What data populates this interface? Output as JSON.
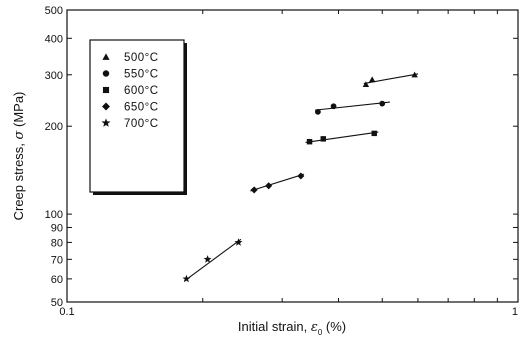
{
  "chart_data": {
    "type": "scatter",
    "title": "",
    "xlabel_prefix": "Initial strain, ",
    "xlabel_symbol": "ε",
    "xlabel_subscript": "0",
    "xlabel_unit": " (%)",
    "ylabel_prefix": "Creep stress, ",
    "ylabel_symbol": "σ",
    "ylabel_unit": " (MPa)",
    "x_scale": "log",
    "y_scale": "log",
    "xlim": [
      0.1,
      1
    ],
    "ylim": [
      50,
      500
    ],
    "x_ticks": [
      {
        "value": 0.1,
        "label": "0.1"
      },
      {
        "value": 1,
        "label": "1"
      }
    ],
    "y_ticks": [
      {
        "value": 50,
        "label": "50"
      },
      {
        "value": 60,
        "label": "60"
      },
      {
        "value": 70,
        "label": "70"
      },
      {
        "value": 80,
        "label": "80"
      },
      {
        "value": 90,
        "label": "90"
      },
      {
        "value": 100,
        "label": "100"
      },
      {
        "value": 200,
        "label": "200"
      },
      {
        "value": 300,
        "label": "300"
      },
      {
        "value": 400,
        "label": "400"
      },
      {
        "value": 500,
        "label": "500"
      }
    ],
    "legend_position": "top-left",
    "series": [
      {
        "name": "500°C",
        "marker": "triangle",
        "points": [
          [
            0.46,
            278
          ],
          [
            0.475,
            289
          ],
          [
            0.59,
            300
          ]
        ],
        "fit": [
          [
            0.455,
            280
          ],
          [
            0.6,
            302
          ]
        ]
      },
      {
        "name": "550°C",
        "marker": "circle",
        "points": [
          [
            0.36,
            224
          ],
          [
            0.39,
            234
          ],
          [
            0.5,
            239
          ]
        ],
        "fit": [
          [
            0.355,
            227
          ],
          [
            0.52,
            242
          ]
        ]
      },
      {
        "name": "600°C",
        "marker": "square",
        "points": [
          [
            0.345,
            177
          ],
          [
            0.37,
            181
          ],
          [
            0.48,
            189
          ]
        ],
        "fit": [
          [
            0.338,
            176
          ],
          [
            0.49,
            191
          ]
        ]
      },
      {
        "name": "650°C",
        "marker": "diamond",
        "points": [
          [
            0.26,
            121
          ],
          [
            0.28,
            125
          ],
          [
            0.33,
            135
          ]
        ],
        "fit": [
          [
            0.255,
            120
          ],
          [
            0.335,
            137
          ]
        ]
      },
      {
        "name": "700°C",
        "marker": "star",
        "points": [
          [
            0.184,
            60
          ],
          [
            0.205,
            70
          ],
          [
            0.24,
            80
          ]
        ],
        "fit": [
          [
            0.182,
            59
          ],
          [
            0.243,
            82
          ]
        ]
      }
    ]
  }
}
